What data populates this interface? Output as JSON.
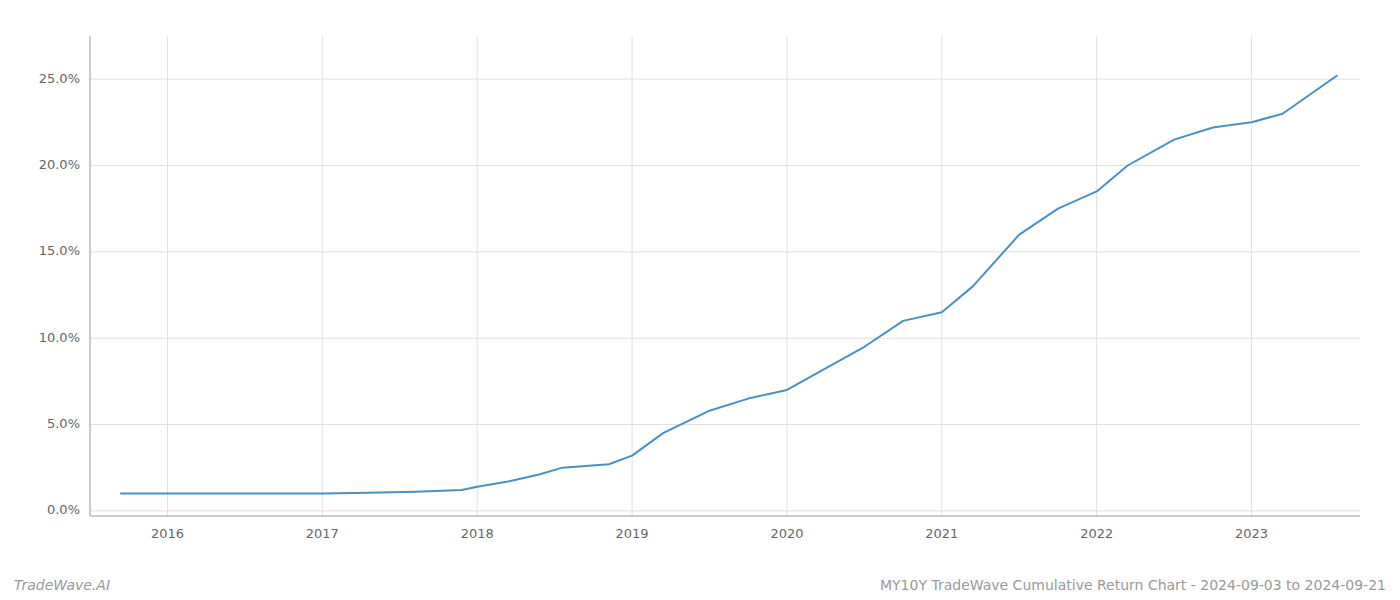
{
  "chart_data": {
    "type": "line",
    "x": [
      2015.7,
      2016.0,
      2016.3,
      2016.6,
      2017.0,
      2017.3,
      2017.6,
      2017.9,
      2018.0,
      2018.2,
      2018.4,
      2018.55,
      2018.7,
      2018.85,
      2019.0,
      2019.2,
      2019.5,
      2019.75,
      2020.0,
      2020.2,
      2020.5,
      2020.75,
      2021.0,
      2021.2,
      2021.5,
      2021.75,
      2022.0,
      2022.2,
      2022.5,
      2022.75,
      2023.0,
      2023.2,
      2023.55
    ],
    "values": [
      1.0,
      1.0,
      1.0,
      1.0,
      1.0,
      1.05,
      1.1,
      1.2,
      1.4,
      1.7,
      2.1,
      2.5,
      2.6,
      2.7,
      3.2,
      4.5,
      5.8,
      6.5,
      7.0,
      8.0,
      9.5,
      11.0,
      11.5,
      13.0,
      16.0,
      17.5,
      18.5,
      20.0,
      21.5,
      22.2,
      22.5,
      23.0,
      25.2
    ],
    "color": "#4a90c4",
    "xlim": [
      2015.5,
      2023.7
    ],
    "ylim": [
      -0.3,
      27.5
    ],
    "xticks": [
      2016,
      2017,
      2018,
      2019,
      2020,
      2021,
      2022,
      2023
    ],
    "yticks": [
      {
        "value": 0.0,
        "label": "0.0%"
      },
      {
        "value": 5.0,
        "label": "5.0%"
      },
      {
        "value": 10.0,
        "label": "10.0%"
      },
      {
        "value": 15.0,
        "label": "15.0%"
      },
      {
        "value": 20.0,
        "label": "20.0%"
      },
      {
        "value": 25.0,
        "label": "25.0%"
      }
    ],
    "grid": true,
    "annotations": [
      "TradeWave.AI",
      "MY10Y TradeWave Cumulative Return Chart - 2024-09-03 to 2024-09-21"
    ]
  }
}
